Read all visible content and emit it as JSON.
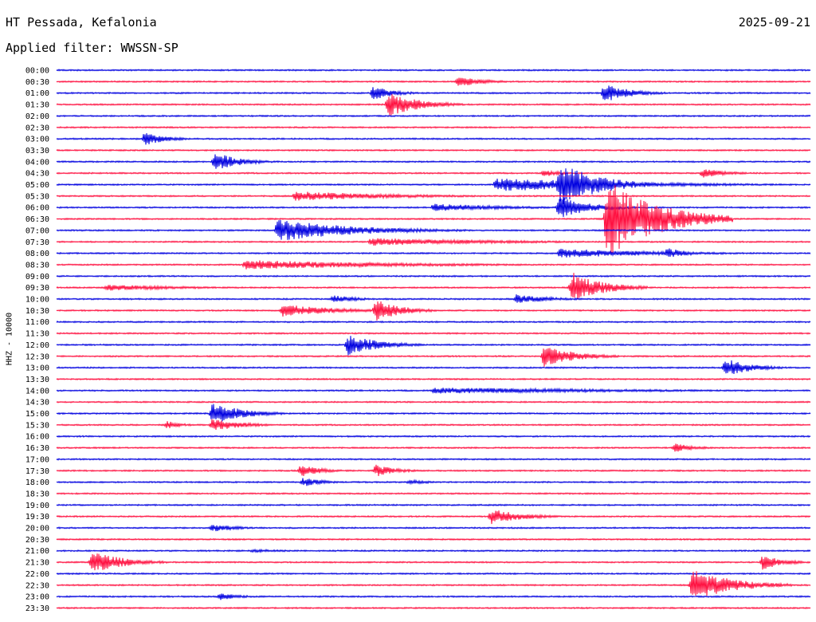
{
  "header": {
    "station": "HT Pessada, Kefalonia",
    "date": "2025-09-21",
    "filter": "Applied filter: WWSSN-SP"
  },
  "colors": {
    "odd": "#0000e0",
    "even": "#ff1040",
    "text": "#000000"
  },
  "chart_data": {
    "type": "line",
    "ylabel": "HHZ - 10000",
    "tick_labels": [
      "00:00",
      "00:30",
      "01:00",
      "01:30",
      "02:00",
      "02:30",
      "03:00",
      "03:30",
      "04:00",
      "04:30",
      "05:00",
      "05:30",
      "06:00",
      "06:30",
      "07:00",
      "07:30",
      "08:00",
      "08:30",
      "09:00",
      "09:30",
      "10:00",
      "10:30",
      "11:00",
      "11:30",
      "12:00",
      "12:30",
      "13:00",
      "13:30",
      "14:00",
      "14:30",
      "15:00",
      "15:30",
      "16:00",
      "16:30",
      "17:00",
      "17:30",
      "18:00",
      "18:30",
      "19:00",
      "19:30",
      "20:00",
      "20:30",
      "21:00",
      "21:30",
      "22:00",
      "22:30",
      "23:00",
      "23:30"
    ],
    "x_range_minutes": [
      0,
      30
    ],
    "events": [
      {
        "line": 1,
        "t": 16.0,
        "amp": 7,
        "dur": 1.0
      },
      {
        "line": 2,
        "t": 12.6,
        "amp": 9,
        "dur": 0.8
      },
      {
        "line": 2,
        "t": 21.8,
        "amp": 12,
        "dur": 1.0
      },
      {
        "line": 3,
        "t": 13.2,
        "amp": 16,
        "dur": 1.2
      },
      {
        "line": 6,
        "t": 3.5,
        "amp": 9,
        "dur": 0.8
      },
      {
        "line": 8,
        "t": 6.3,
        "amp": 12,
        "dur": 1.0
      },
      {
        "line": 9,
        "t": 25.7,
        "amp": 6,
        "dur": 1.0
      },
      {
        "line": 9,
        "t": 19.4,
        "amp": 5,
        "dur": 0.6
      },
      {
        "line": 10,
        "t": 17.5,
        "amp": 9,
        "dur": 5.0
      },
      {
        "line": 10,
        "t": 20.0,
        "amp": 28,
        "dur": 1.6
      },
      {
        "line": 11,
        "t": 9.5,
        "amp": 6,
        "dur": 4.0
      },
      {
        "line": 12,
        "t": 20.0,
        "amp": 14,
        "dur": 1.2
      },
      {
        "line": 12,
        "t": 15.0,
        "amp": 5,
        "dur": 3.0
      },
      {
        "line": 13,
        "t": 21.9,
        "amp": 50,
        "dur": 2.0
      },
      {
        "line": 14,
        "t": 8.8,
        "amp": 14,
        "dur": 3.0
      },
      {
        "line": 15,
        "t": 12.5,
        "amp": 5,
        "dur": 5.0
      },
      {
        "line": 16,
        "t": 20.0,
        "amp": 6,
        "dur": 4.0
      },
      {
        "line": 16,
        "t": 24.3,
        "amp": 7,
        "dur": 0.8
      },
      {
        "line": 17,
        "t": 7.5,
        "amp": 6,
        "dur": 6.0
      },
      {
        "line": 19,
        "t": 2.0,
        "amp": 4,
        "dur": 3.0
      },
      {
        "line": 19,
        "t": 20.5,
        "amp": 20,
        "dur": 1.2
      },
      {
        "line": 20,
        "t": 11.0,
        "amp": 5,
        "dur": 1.0
      },
      {
        "line": 20,
        "t": 18.3,
        "amp": 6,
        "dur": 1.4
      },
      {
        "line": 21,
        "t": 9.0,
        "amp": 8,
        "dur": 2.0
      },
      {
        "line": 21,
        "t": 12.7,
        "amp": 14,
        "dur": 1.0
      },
      {
        "line": 24,
        "t": 11.6,
        "amp": 14,
        "dur": 1.2
      },
      {
        "line": 25,
        "t": 19.4,
        "amp": 14,
        "dur": 1.2
      },
      {
        "line": 26,
        "t": 26.6,
        "amp": 12,
        "dur": 1.0
      },
      {
        "line": 28,
        "t": 15.0,
        "amp": 4,
        "dur": 8.0
      },
      {
        "line": 30,
        "t": 6.2,
        "amp": 14,
        "dur": 1.2
      },
      {
        "line": 31,
        "t": 4.4,
        "amp": 5,
        "dur": 0.6
      },
      {
        "line": 31,
        "t": 6.2,
        "amp": 8,
        "dur": 1.2
      },
      {
        "line": 33,
        "t": 24.6,
        "amp": 6,
        "dur": 0.8
      },
      {
        "line": 35,
        "t": 9.7,
        "amp": 8,
        "dur": 0.8
      },
      {
        "line": 35,
        "t": 12.7,
        "amp": 8,
        "dur": 0.8
      },
      {
        "line": 36,
        "t": 9.8,
        "amp": 6,
        "dur": 0.8
      },
      {
        "line": 36,
        "t": 14.0,
        "amp": 3,
        "dur": 1.0
      },
      {
        "line": 39,
        "t": 17.3,
        "amp": 10,
        "dur": 1.2
      },
      {
        "line": 40,
        "t": 6.2,
        "amp": 5,
        "dur": 1.0
      },
      {
        "line": 42,
        "t": 7.8,
        "amp": 2,
        "dur": 2.0
      },
      {
        "line": 43,
        "t": 1.4,
        "amp": 15,
        "dur": 1.2
      },
      {
        "line": 43,
        "t": 28.1,
        "amp": 10,
        "dur": 0.8
      },
      {
        "line": 45,
        "t": 25.3,
        "amp": 20,
        "dur": 1.6
      },
      {
        "line": 46,
        "t": 6.5,
        "amp": 5,
        "dur": 0.8
      }
    ]
  }
}
